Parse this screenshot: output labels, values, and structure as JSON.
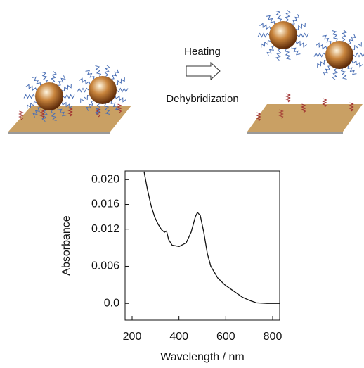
{
  "diagram": {
    "step_top": "Heating",
    "step_bottom": "Dehybridization"
  },
  "chart_data": {
    "type": "line",
    "x": [
      251,
      266,
      281,
      296,
      311,
      326,
      338,
      347,
      356,
      371,
      401,
      431,
      452,
      470,
      479,
      491,
      506,
      521,
      536,
      566,
      596,
      641,
      671,
      701,
      731,
      776,
      830
    ],
    "series": [
      {
        "color": "#111111",
        "values": [
          0.0213,
          0.0183,
          0.0158,
          0.014,
          0.0128,
          0.0119,
          0.0115,
          0.0117,
          0.0103,
          0.0094,
          0.0092,
          0.0098,
          0.0115,
          0.014,
          0.0147,
          0.0142,
          0.0115,
          0.0081,
          0.006,
          0.0041,
          0.003,
          0.0018,
          0.001,
          0.0005,
          0.0001,
          0,
          0
        ]
      }
    ],
    "xlabel": "Wavelength / nm",
    "ylabel": "Absorbance",
    "xlim": [
      170,
      830
    ],
    "ylim": [
      -0.0027,
      0.0214
    ],
    "xticks": [
      200,
      400,
      600,
      800
    ],
    "yticks": [
      {
        "value": 0.02,
        "label": "0.020"
      },
      {
        "value": 0.016,
        "label": "0.016"
      },
      {
        "value": 0.012,
        "label": "0.012"
      },
      {
        "value": 0.006,
        "label": "0.006"
      },
      {
        "value": 0,
        "label": "0.0"
      }
    ]
  }
}
